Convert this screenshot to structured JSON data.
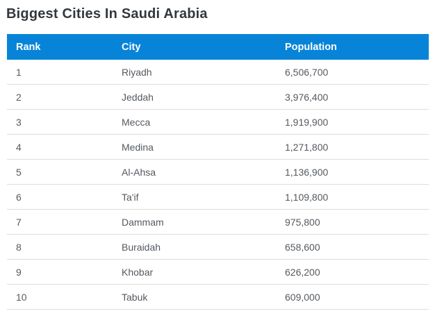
{
  "page": {
    "title": "Biggest Cities In Saudi Arabia"
  },
  "table": {
    "columns": [
      "Rank",
      "City",
      "Population"
    ],
    "rows": [
      {
        "rank": "1",
        "city": "Riyadh",
        "population": "6,506,700"
      },
      {
        "rank": "2",
        "city": "Jeddah",
        "population": "3,976,400"
      },
      {
        "rank": "3",
        "city": "Mecca",
        "population": "1,919,900"
      },
      {
        "rank": "4",
        "city": "Medina",
        "population": "1,271,800"
      },
      {
        "rank": "5",
        "city": "Al-Ahsa",
        "population": "1,136,900"
      },
      {
        "rank": "6",
        "city": "Ta'if",
        "population": "1,109,800"
      },
      {
        "rank": "7",
        "city": "Dammam",
        "population": "975,800"
      },
      {
        "rank": "8",
        "city": "Buraidah",
        "population": "658,600"
      },
      {
        "rank": "9",
        "city": "Khobar",
        "population": "626,200"
      },
      {
        "rank": "10",
        "city": "Tabuk",
        "population": "609,000"
      }
    ]
  },
  "chart_data": {
    "type": "table",
    "title": "Biggest Cities In Saudi Arabia",
    "columns": [
      "Rank",
      "City",
      "Population"
    ],
    "rows": [
      [
        1,
        "Riyadh",
        6506700
      ],
      [
        2,
        "Jeddah",
        3976400
      ],
      [
        3,
        "Mecca",
        1919900
      ],
      [
        4,
        "Medina",
        1271800
      ],
      [
        5,
        "Al-Ahsa",
        1136900
      ],
      [
        6,
        "Ta'if",
        1109800
      ],
      [
        7,
        "Dammam",
        975800
      ],
      [
        8,
        "Buraidah",
        658600
      ],
      [
        9,
        "Khobar",
        626200
      ],
      [
        10,
        "Tabuk",
        609000
      ]
    ]
  },
  "colors": {
    "header_bg": "#0784d8",
    "header_text": "#ffffff",
    "row_border": "#dddddd",
    "body_text": "#54595f",
    "title_text": "#33383d"
  }
}
